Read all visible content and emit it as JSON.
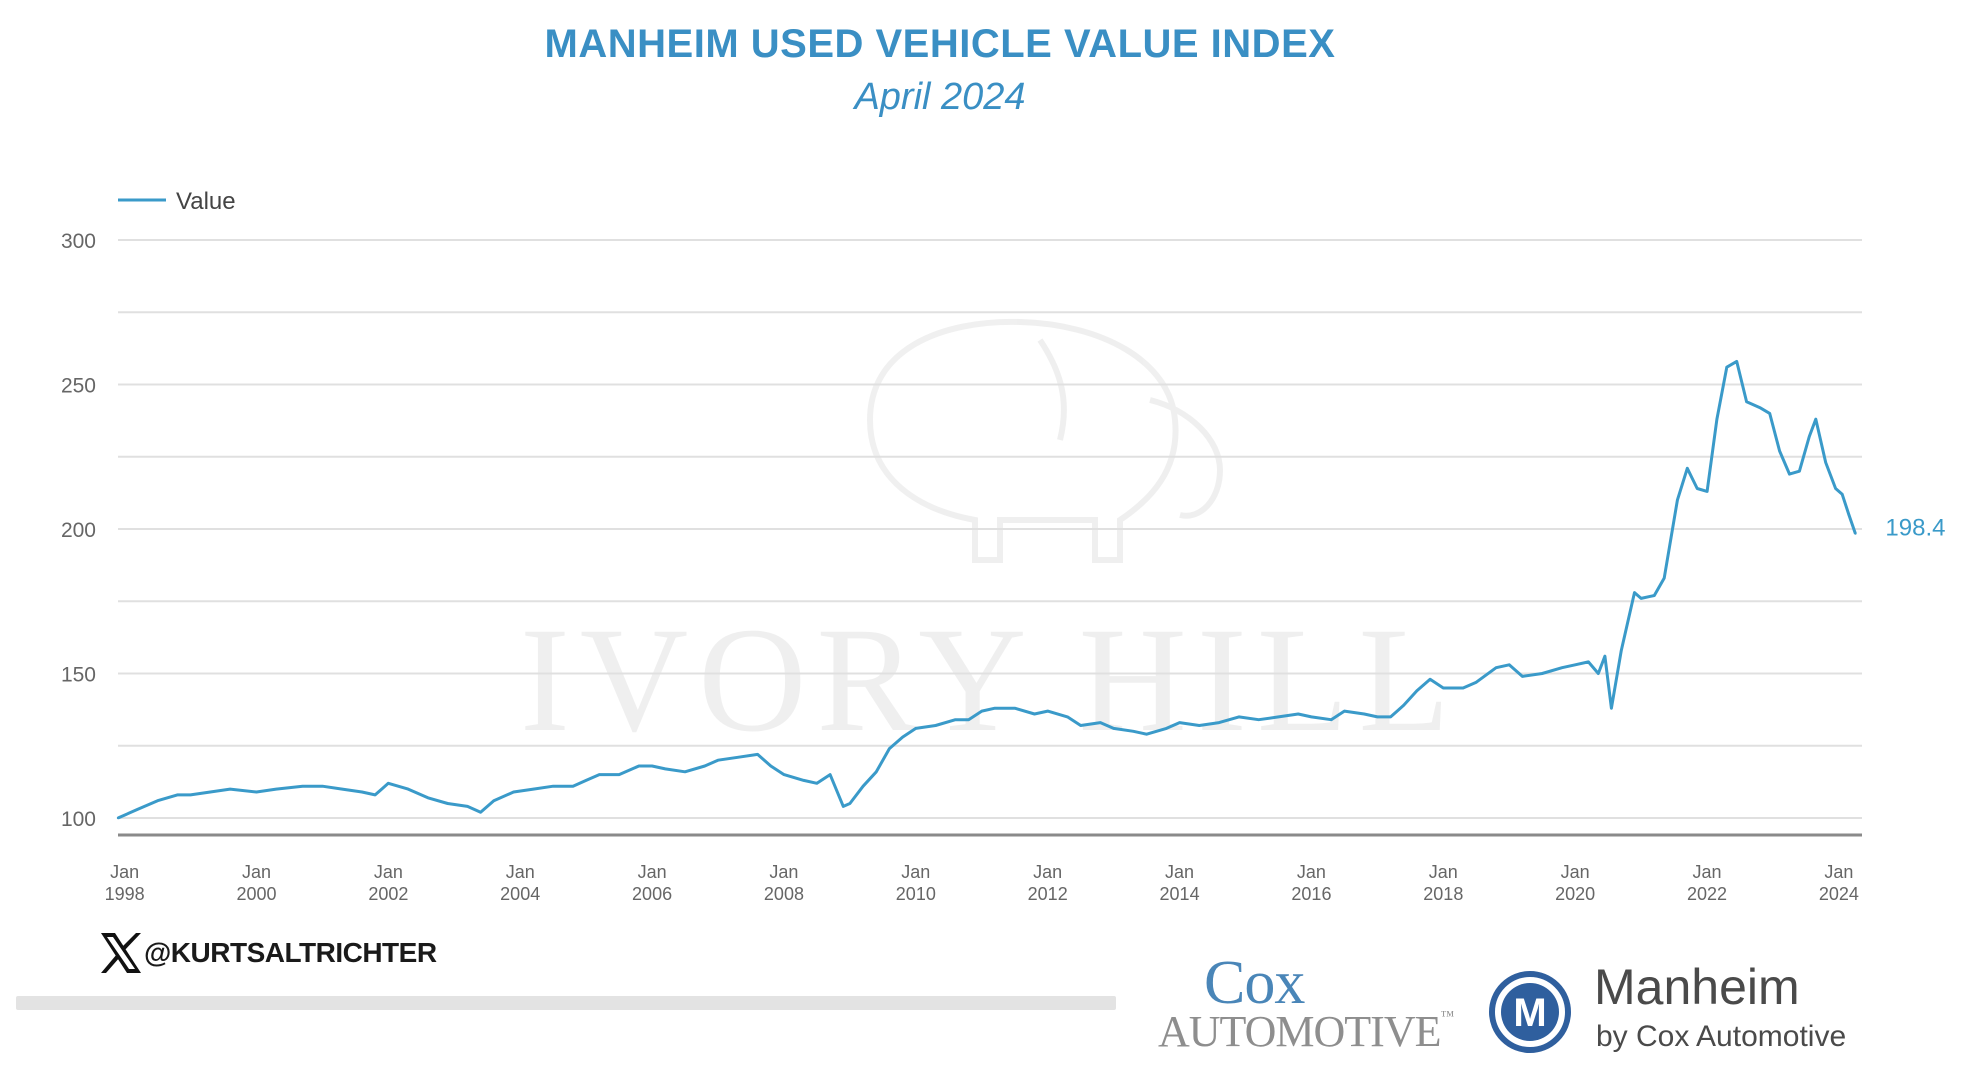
{
  "header": {
    "title": "MANHEIM USED VEHICLE VALUE INDEX",
    "subtitle": "April 2024"
  },
  "colors": {
    "series": "#3a9ac9",
    "title": "#3a8fc4",
    "grid": "#e0e0e0",
    "axis_line": "#8a8a8a",
    "tick_text": "#666666"
  },
  "chart_data": {
    "type": "line",
    "legend": {
      "label": "Value",
      "position": "top-left"
    },
    "ylim": [
      100,
      300
    ],
    "yticks": [
      {
        "value": 100,
        "label": "100"
      },
      {
        "value": 150,
        "label": "150"
      },
      {
        "value": 200,
        "label": "200"
      },
      {
        "value": 250,
        "label": "250"
      },
      {
        "value": 300,
        "label": "300"
      }
    ],
    "ygrid": [
      100,
      125,
      150,
      175,
      200,
      225,
      250,
      275,
      300
    ],
    "xlim": [
      1997.9,
      2024.35
    ],
    "xticks": [
      {
        "x": 1998,
        "month": "Jan",
        "year": "1998"
      },
      {
        "x": 2000,
        "month": "Jan",
        "year": "2000"
      },
      {
        "x": 2002,
        "month": "Jan",
        "year": "2002"
      },
      {
        "x": 2004,
        "month": "Jan",
        "year": "2004"
      },
      {
        "x": 2006,
        "month": "Jan",
        "year": "2006"
      },
      {
        "x": 2008,
        "month": "Jan",
        "year": "2008"
      },
      {
        "x": 2010,
        "month": "Jan",
        "year": "2010"
      },
      {
        "x": 2012,
        "month": "Jan",
        "year": "2012"
      },
      {
        "x": 2014,
        "month": "Jan",
        "year": "2014"
      },
      {
        "x": 2016,
        "month": "Jan",
        "year": "2016"
      },
      {
        "x": 2018,
        "month": "Jan",
        "year": "2018"
      },
      {
        "x": 2020,
        "month": "Jan",
        "year": "2020"
      },
      {
        "x": 2022,
        "month": "Jan",
        "year": "2022"
      },
      {
        "x": 2024,
        "month": "Jan",
        "year": "2024"
      }
    ],
    "end_label": {
      "x": 2024.25,
      "y": 198.4,
      "text": "198.4"
    },
    "series": [
      {
        "name": "Value",
        "points": [
          [
            1997.9,
            100
          ],
          [
            1998.0,
            101
          ],
          [
            1998.2,
            103
          ],
          [
            1998.5,
            106
          ],
          [
            1998.8,
            108
          ],
          [
            1999.0,
            108
          ],
          [
            1999.3,
            109
          ],
          [
            1999.6,
            110
          ],
          [
            2000.0,
            109
          ],
          [
            2000.3,
            110
          ],
          [
            2000.7,
            111
          ],
          [
            2001.0,
            111
          ],
          [
            2001.3,
            110
          ],
          [
            2001.6,
            109
          ],
          [
            2001.8,
            108
          ],
          [
            2002.0,
            112
          ],
          [
            2002.3,
            110
          ],
          [
            2002.6,
            107
          ],
          [
            2002.9,
            105
          ],
          [
            2003.2,
            104
          ],
          [
            2003.4,
            102
          ],
          [
            2003.6,
            106
          ],
          [
            2003.9,
            109
          ],
          [
            2004.2,
            110
          ],
          [
            2004.5,
            111
          ],
          [
            2004.8,
            111
          ],
          [
            2005.0,
            113
          ],
          [
            2005.2,
            115
          ],
          [
            2005.5,
            115
          ],
          [
            2005.8,
            118
          ],
          [
            2006.0,
            118
          ],
          [
            2006.2,
            117
          ],
          [
            2006.5,
            116
          ],
          [
            2006.8,
            118
          ],
          [
            2007.0,
            120
          ],
          [
            2007.3,
            121
          ],
          [
            2007.6,
            122
          ],
          [
            2007.8,
            118
          ],
          [
            2008.0,
            115
          ],
          [
            2008.3,
            113
          ],
          [
            2008.5,
            112
          ],
          [
            2008.7,
            115
          ],
          [
            2008.9,
            104
          ],
          [
            2009.0,
            105
          ],
          [
            2009.2,
            111
          ],
          [
            2009.4,
            116
          ],
          [
            2009.6,
            124
          ],
          [
            2009.8,
            128
          ],
          [
            2010.0,
            131
          ],
          [
            2010.3,
            132
          ],
          [
            2010.6,
            134
          ],
          [
            2010.8,
            134
          ],
          [
            2011.0,
            137
          ],
          [
            2011.2,
            138
          ],
          [
            2011.5,
            138
          ],
          [
            2011.8,
            136
          ],
          [
            2012.0,
            137
          ],
          [
            2012.3,
            135
          ],
          [
            2012.5,
            132
          ],
          [
            2012.8,
            133
          ],
          [
            2013.0,
            131
          ],
          [
            2013.3,
            130
          ],
          [
            2013.5,
            129
          ],
          [
            2013.8,
            131
          ],
          [
            2014.0,
            133
          ],
          [
            2014.3,
            132
          ],
          [
            2014.6,
            133
          ],
          [
            2014.9,
            135
          ],
          [
            2015.2,
            134
          ],
          [
            2015.5,
            135
          ],
          [
            2015.8,
            136
          ],
          [
            2016.0,
            135
          ],
          [
            2016.3,
            134
          ],
          [
            2016.5,
            137
          ],
          [
            2016.8,
            136
          ],
          [
            2017.0,
            135
          ],
          [
            2017.2,
            135
          ],
          [
            2017.4,
            139
          ],
          [
            2017.6,
            144
          ],
          [
            2017.8,
            148
          ],
          [
            2018.0,
            145
          ],
          [
            2018.3,
            145
          ],
          [
            2018.5,
            147
          ],
          [
            2018.8,
            152
          ],
          [
            2019.0,
            153
          ],
          [
            2019.2,
            149
          ],
          [
            2019.5,
            150
          ],
          [
            2019.8,
            152
          ],
          [
            2020.0,
            153
          ],
          [
            2020.2,
            154
          ],
          [
            2020.35,
            150
          ],
          [
            2020.45,
            156
          ],
          [
            2020.55,
            138
          ],
          [
            2020.7,
            158
          ],
          [
            2020.9,
            178
          ],
          [
            2021.0,
            176
          ],
          [
            2021.2,
            177
          ],
          [
            2021.35,
            183
          ],
          [
            2021.55,
            210
          ],
          [
            2021.7,
            221
          ],
          [
            2021.85,
            214
          ],
          [
            2022.0,
            213
          ],
          [
            2022.15,
            238
          ],
          [
            2022.3,
            256
          ],
          [
            2022.45,
            258
          ],
          [
            2022.6,
            244
          ],
          [
            2022.8,
            242
          ],
          [
            2022.95,
            240
          ],
          [
            2023.1,
            227
          ],
          [
            2023.25,
            219
          ],
          [
            2023.4,
            220
          ],
          [
            2023.55,
            232
          ],
          [
            2023.65,
            238
          ],
          [
            2023.8,
            223
          ],
          [
            2023.95,
            214
          ],
          [
            2024.05,
            212
          ],
          [
            2024.15,
            205
          ],
          [
            2024.25,
            198.4
          ]
        ]
      }
    ]
  },
  "footer": {
    "handle": "@KURTSALTRICHTER",
    "logo_cox_top": "Cox",
    "logo_cox_bottom": "AUTOMOTIVE",
    "logo_cox_mark": "™",
    "logo_manheim_name": "Manheim",
    "logo_manheim_by": "by Cox Automotive",
    "logo_manheim_badge": "M"
  },
  "watermark": {
    "text": "IVORY HILL",
    "icon": "elephant-icon"
  }
}
